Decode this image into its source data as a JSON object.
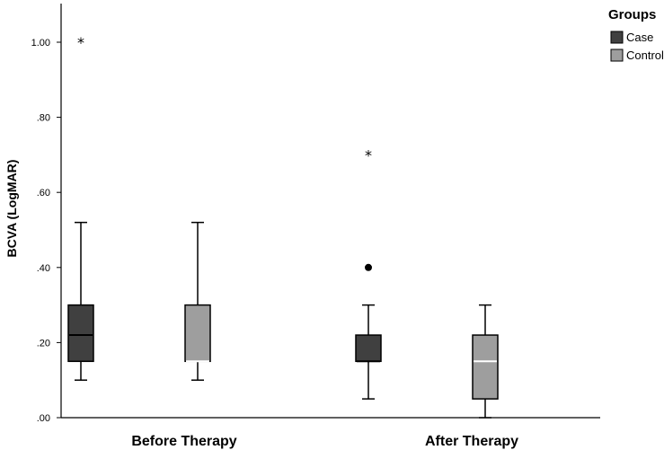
{
  "chart_data": {
    "type": "boxplot",
    "ylabel": "BCVA (LogMAR)",
    "ylim": [
      0,
      1.1
    ],
    "y_ticks": [
      0,
      0.2,
      0.4,
      0.6,
      0.8,
      1.0
    ],
    "y_tick_labels": [
      ".00",
      ".20",
      ".40",
      ".60",
      ".80",
      "1.00"
    ],
    "categories": [
      "Before Therapy",
      "After Therapy"
    ],
    "legend": {
      "title": "Groups",
      "position": "top-right",
      "entries": [
        {
          "name": "Case",
          "color": "#404040"
        },
        {
          "name": "Control",
          "color": "#9e9e9e"
        }
      ]
    },
    "boxes": [
      {
        "category": "Before Therapy",
        "group": "Case",
        "whisker_low": 0.1,
        "q1": 0.15,
        "median": 0.22,
        "q3": 0.3,
        "whisker_high": 0.52,
        "outliers": [],
        "extremes": [
          1.0
        ]
      },
      {
        "category": "Before Therapy",
        "group": "Control",
        "whisker_low": 0.1,
        "q1": 0.15,
        "median": 0.15,
        "q3": 0.3,
        "whisker_high": 0.52,
        "outliers": [],
        "extremes": []
      },
      {
        "category": "After Therapy",
        "group": "Case",
        "whisker_low": 0.05,
        "q1": 0.15,
        "median": 0.15,
        "q3": 0.22,
        "whisker_high": 0.3,
        "outliers": [
          0.4
        ],
        "extremes": [
          0.7
        ]
      },
      {
        "category": "After Therapy",
        "group": "Control",
        "whisker_low": 0.0,
        "q1": 0.05,
        "median": 0.15,
        "q3": 0.22,
        "whisker_high": 0.3,
        "outliers": [],
        "extremes": []
      }
    ]
  }
}
